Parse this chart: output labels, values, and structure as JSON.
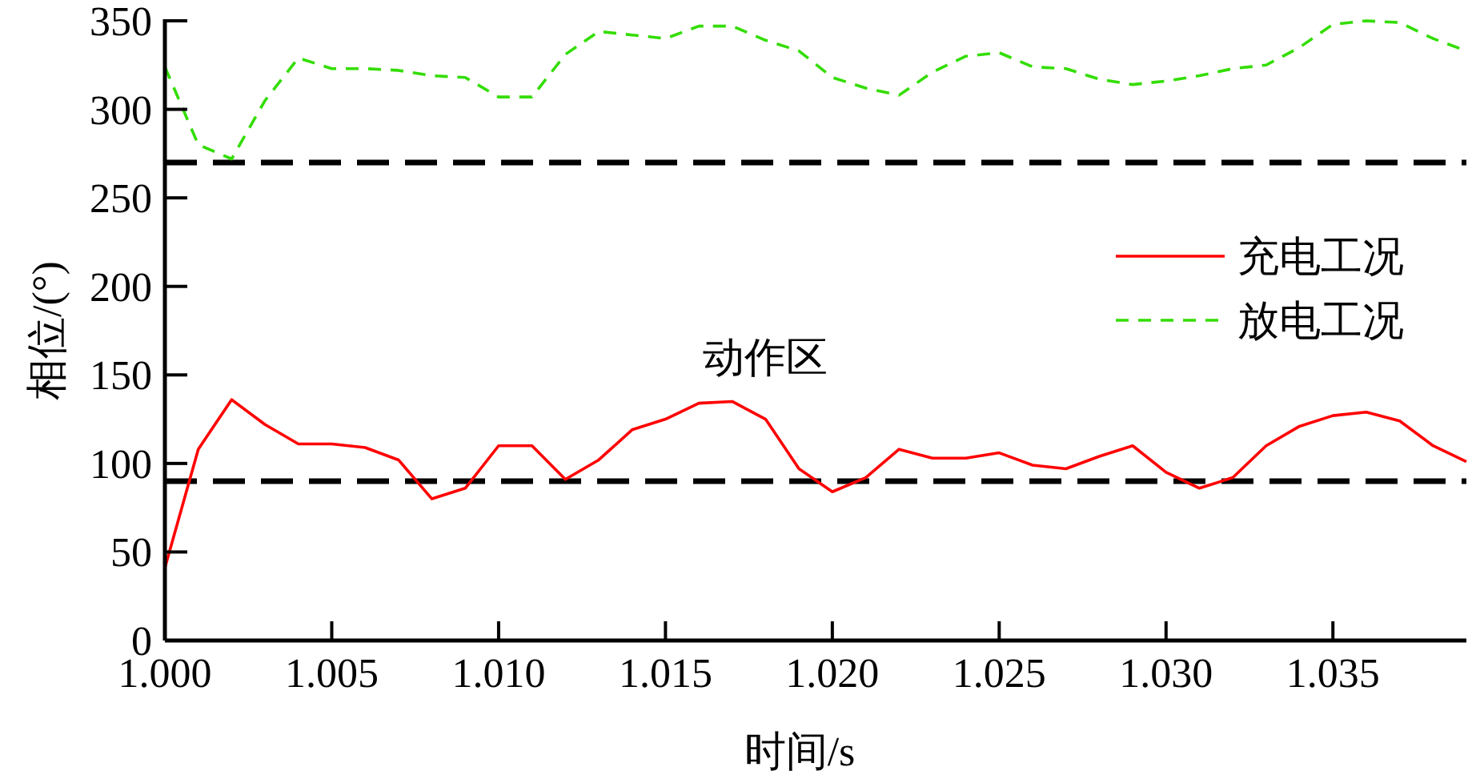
{
  "chart_data": {
    "type": "line",
    "xlabel": "时间/s",
    "ylabel": "相位/(°)",
    "x": [
      1.0,
      1.001,
      1.002,
      1.003,
      1.004,
      1.005,
      1.006,
      1.007,
      1.008,
      1.009,
      1.01,
      1.011,
      1.012,
      1.013,
      1.014,
      1.015,
      1.016,
      1.017,
      1.018,
      1.019,
      1.02,
      1.021,
      1.022,
      1.023,
      1.024,
      1.025,
      1.026,
      1.027,
      1.028,
      1.029,
      1.03,
      1.031,
      1.032,
      1.033,
      1.034,
      1.035,
      1.036,
      1.037,
      1.038,
      1.039
    ],
    "series": [
      {
        "name": "充电工况",
        "color": "#ff0000",
        "line_style": "solid",
        "values": [
          41,
          108,
          136,
          122,
          111,
          111,
          109,
          102,
          80,
          86,
          110,
          110,
          91,
          102,
          119,
          125,
          134,
          135,
          125,
          97,
          84,
          92,
          108,
          103,
          103,
          106,
          99,
          97,
          104,
          110,
          95,
          86,
          92,
          110,
          121,
          127,
          129,
          124,
          110,
          101
        ]
      },
      {
        "name": "放电工况",
        "color": "#33dd00",
        "line_style": "dashed",
        "values": [
          324,
          280,
          272,
          305,
          329,
          323,
          323,
          322,
          319,
          318,
          307,
          307,
          331,
          344,
          342,
          340,
          347,
          347,
          339,
          333,
          318,
          312,
          308,
          321,
          330,
          332,
          324,
          323,
          317,
          314,
          316,
          319,
          323,
          325,
          335,
          348,
          350,
          349,
          340,
          333
        ]
      }
    ],
    "xlim": [
      1.0,
      1.039
    ],
    "ylim": [
      0,
      350
    ],
    "xticks": [
      {
        "value": 1.0,
        "label": "1.000"
      },
      {
        "value": 1.005,
        "label": "1.005"
      },
      {
        "value": 1.01,
        "label": "1.010"
      },
      {
        "value": 1.015,
        "label": "1.015"
      },
      {
        "value": 1.02,
        "label": "1.020"
      },
      {
        "value": 1.025,
        "label": "1.025"
      },
      {
        "value": 1.03,
        "label": "1.030"
      },
      {
        "value": 1.035,
        "label": "1.035"
      }
    ],
    "yticks": [
      0,
      50,
      100,
      150,
      200,
      250,
      300,
      350
    ],
    "ref_lines": [
      {
        "axis": "y",
        "value": 90,
        "color": "#000000",
        "line_style": "dashed"
      },
      {
        "axis": "y",
        "value": 270,
        "color": "#000000",
        "line_style": "dashed"
      }
    ],
    "annotations": [
      "动作区"
    ],
    "legend": "right",
    "marker": "none",
    "grid": false
  }
}
